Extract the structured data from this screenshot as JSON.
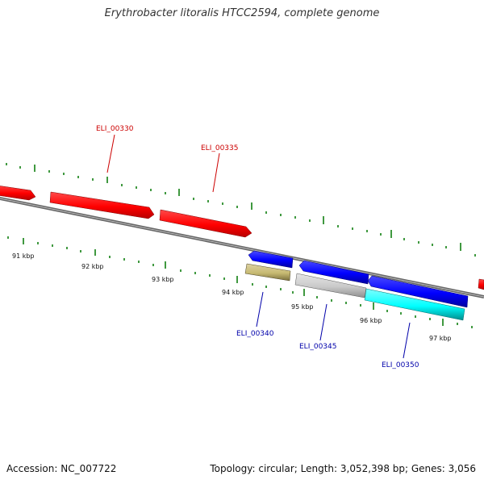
{
  "header": {
    "title": "Erythrobacter litoralis HTCC2594, complete genome"
  },
  "footer": {
    "accession": "Accession: NC_007722",
    "summary": "Topology: circular; Length: 3,052,398 bp; Genes: 3,056"
  },
  "scale_labels": [
    "91 kbp",
    "92 kbp",
    "93 kbp",
    "94 kbp",
    "95 kbp",
    "96 kbp",
    "97 kbp"
  ],
  "colors": {
    "red_gene": "#ff0000",
    "blue_gene": "#0000ff",
    "gray_gene": "#c9c9c9",
    "khaki_gene": "#c7ba72",
    "cyan_gene": "#00ffff",
    "tick": "#007700",
    "backbone": "#7a7a7a",
    "red_label": "#cc0000",
    "blue_label": "#0000aa"
  },
  "annotations": [
    {
      "label": "ELI_00330",
      "color_key": "red_label"
    },
    {
      "label": "ELI_00335",
      "color_key": "red_label"
    },
    {
      "label": "ELI_00340",
      "color_key": "blue_label"
    },
    {
      "label": "ELI_00345",
      "color_key": "blue_label"
    },
    {
      "label": "ELI_00350",
      "color_key": "blue_label"
    }
  ]
}
